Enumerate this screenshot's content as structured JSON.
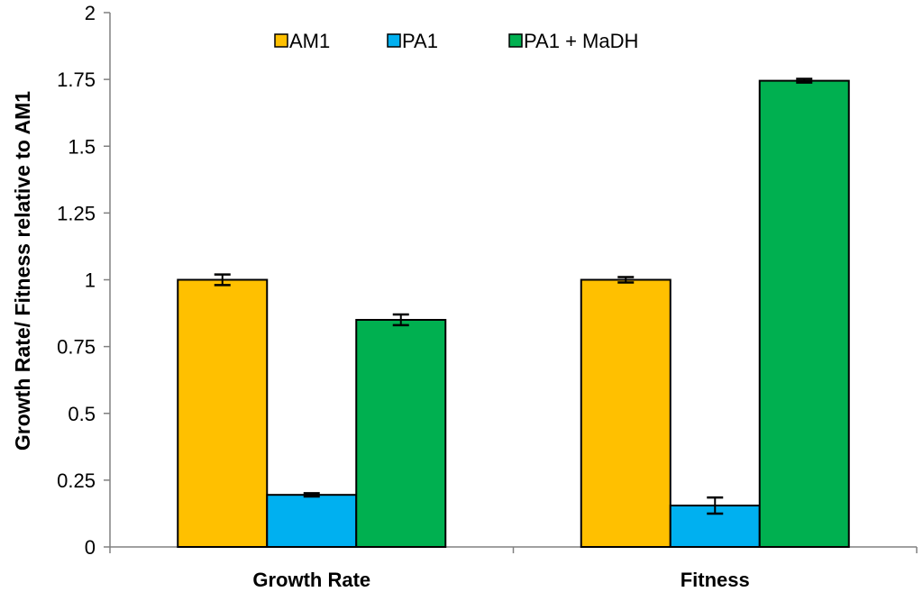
{
  "chart_data": {
    "type": "bar",
    "title": "",
    "xlabel": "",
    "ylabel": "Growth Rate/ Fitness relative to AM1",
    "ylim": [
      0,
      2
    ],
    "yticks": [
      "0",
      "0.25",
      "0.5",
      "0.75",
      "1",
      "1.25",
      "1.5",
      "1.75",
      "2"
    ],
    "yticks_values": [
      0,
      0.25,
      0.5,
      0.75,
      1,
      1.25,
      1.5,
      1.75,
      2
    ],
    "categories": [
      "Growth Rate",
      "Fitness"
    ],
    "series": [
      {
        "name": "AM1",
        "color": "#FFC000",
        "values": [
          1.0,
          1.0
        ],
        "errors": [
          0.02,
          0.01
        ]
      },
      {
        "name": "PA1",
        "color": "#00B0F0",
        "values": [
          0.195,
          0.155
        ],
        "errors": [
          0.006,
          0.03
        ]
      },
      {
        "name": "PA1 + MaDH",
        "color": "#00B050",
        "values": [
          0.85,
          1.745
        ],
        "errors": [
          0.02,
          0.007
        ]
      }
    ],
    "legend_position": "top",
    "grid": false
  }
}
